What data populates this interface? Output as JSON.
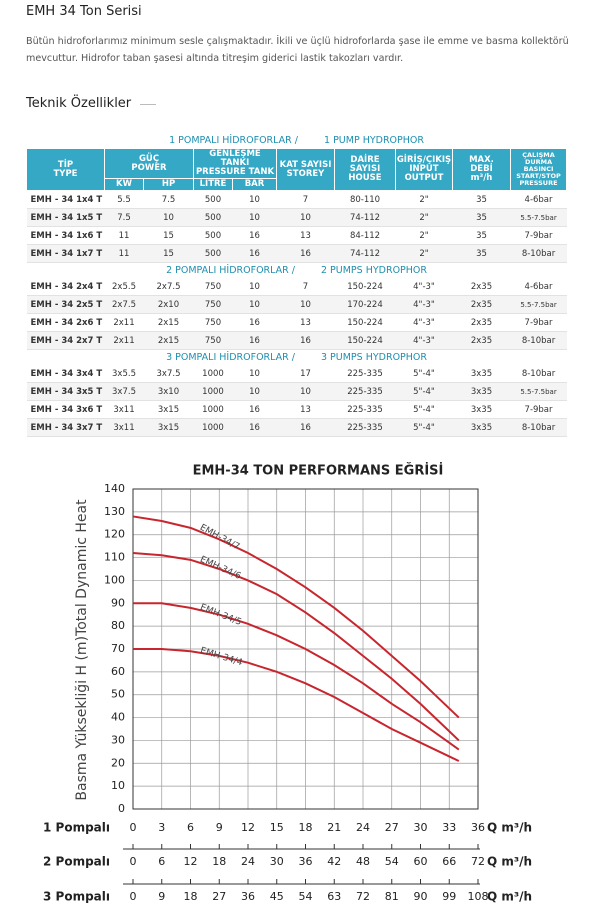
{
  "header": {
    "title": "EMH 34 Ton Serisi"
  },
  "description": "Bütün hidroforlarımız minimum sesle çalışmaktadır. İkili ve üçlü hidroforlarda şase ile emme ve basma kollektörü mevcuttur. Hidrofor taban şasesi altında titreşim giderici lastik takozları vardır.",
  "section_title": "Teknik Özellikler",
  "table": {
    "header": [
      [
        "TİP",
        "TYPE"
      ],
      [
        "GÜÇ",
        "POWER"
      ],
      [
        "GENLEŞME TANKI",
        "PRESSURE TANK"
      ],
      [
        "KAT SAYISI",
        "STOREY"
      ],
      [
        "DAİRE",
        "SAYISI",
        "HOUSE"
      ],
      [
        "GİRİŞ/ÇIKIŞ",
        "INPUT",
        "OUTPUT"
      ],
      [
        "MAX.",
        "DEBİ",
        "m³/h"
      ],
      [
        "ÇALIŞMA",
        "DURMA BASINCI",
        "START/STOP",
        "PRESSURE"
      ]
    ],
    "subheader": [
      "KW",
      "HP",
      "LİTRE",
      "BAR"
    ],
    "groups": [
      {
        "title_tr": "1 POMPALI HİDROFORLAR /",
        "title_en": "1 PUMP HYDROPHOR",
        "rows": [
          [
            "EMH - 34 1x4 T",
            "5.5",
            "7.5",
            "500",
            "10",
            "7",
            "80-110",
            "2\"",
            "35",
            "4-6bar"
          ],
          [
            "EMH - 34 1x5 T",
            "7.5",
            "10",
            "500",
            "10",
            "10",
            "74-112",
            "2\"",
            "35",
            "5.5-7.5bar"
          ],
          [
            "EMH - 34 1x6 T",
            "11",
            "15",
            "500",
            "16",
            "13",
            "84-112",
            "2\"",
            "35",
            "7-9bar"
          ],
          [
            "EMH - 34 1x7 T",
            "11",
            "15",
            "500",
            "16",
            "16",
            "74-112",
            "2\"",
            "35",
            "8-10bar"
          ]
        ]
      },
      {
        "title_tr": "2 POMPALI HİDROFORLAR /",
        "title_en": "2 PUMPS HYDROPHOR",
        "rows": [
          [
            "EMH - 34 2x4 T",
            "2x5.5",
            "2x7.5",
            "750",
            "10",
            "7",
            "150-224",
            "4\"-3\"",
            "2x35",
            "4-6bar"
          ],
          [
            "EMH - 34 2x5 T",
            "2x7.5",
            "2x10",
            "750",
            "10",
            "10",
            "170-224",
            "4\"-3\"",
            "2x35",
            "5.5-7.5bar"
          ],
          [
            "EMH - 34 2x6 T",
            "2x11",
            "2x15",
            "750",
            "16",
            "13",
            "150-224",
            "4\"-3\"",
            "2x35",
            "7-9bar"
          ],
          [
            "EMH - 34 2x7 T",
            "2x11",
            "2x15",
            "750",
            "16",
            "16",
            "150-224",
            "4\"-3\"",
            "2x35",
            "8-10bar"
          ]
        ]
      },
      {
        "title_tr": "3 POMPALI HİDROFORLAR /",
        "title_en": "3 PUMPS HYDROPHOR",
        "rows": [
          [
            "EMH - 34 3x4 T",
            "3x5.5",
            "3x7.5",
            "1000",
            "10",
            "17",
            "225-335",
            "5\"-4\"",
            "3x35",
            "8-10bar"
          ],
          [
            "EMH - 34 3x5 T",
            "3x7.5",
            "3x10",
            "1000",
            "10",
            "10",
            "225-335",
            "5\"-4\"",
            "3x35",
            "5.5-7.5bar"
          ],
          [
            "EMH - 34 3x6 T",
            "3x11",
            "3x15",
            "1000",
            "16",
            "13",
            "225-335",
            "5\"-4\"",
            "3x35",
            "7-9bar"
          ],
          [
            "EMH - 34 3x7 T",
            "3x11",
            "3x15",
            "1000",
            "16",
            "16",
            "225-335",
            "5\"-4\"",
            "3x35",
            "8-10bar"
          ]
        ]
      }
    ]
  },
  "chart_data": {
    "type": "line",
    "title": "EMH-34 TON PERFORMANS EĞRİSİ",
    "ylabel": "Basma Yüksekliği H (m)Total Dynamic Heat",
    "ylim": [
      0,
      140
    ],
    "yticks": [
      0,
      10,
      20,
      30,
      40,
      50,
      60,
      70,
      80,
      90,
      100,
      110,
      120,
      130,
      140
    ],
    "xlabel": "1 Pompalı",
    "xunit": "Q m³/h",
    "xlim": [
      0,
      36
    ],
    "xticks": [
      0,
      3,
      6,
      9,
      12,
      15,
      18,
      21,
      24,
      27,
      30,
      33,
      36
    ],
    "extra_x_axes": [
      {
        "label": "2 Pompalı",
        "unit": "Q m³/h",
        "lim": [
          0,
          72
        ],
        "ticks": [
          0,
          6,
          12,
          18,
          24,
          30,
          36,
          42,
          48,
          54,
          60,
          66,
          72
        ]
      },
      {
        "label": "3 Pompalı",
        "unit": "Q m³/h",
        "lim": [
          0,
          108
        ],
        "ticks": [
          0,
          9,
          18,
          27,
          36,
          45,
          54,
          63,
          72,
          81,
          90,
          99,
          108
        ]
      }
    ],
    "grid": true,
    "x": [
      0,
      3,
      6,
      9,
      12,
      15,
      18,
      21,
      24,
      27,
      30,
      33,
      34
    ],
    "series": [
      {
        "name": "EMH-34/7",
        "color": "#c8262e",
        "values": [
          128,
          126,
          123,
          118,
          112,
          105,
          97,
          88,
          78,
          67,
          56,
          44,
          40
        ]
      },
      {
        "name": "EMH-34/6",
        "color": "#c8262e",
        "values": [
          112,
          111,
          109,
          105,
          100,
          94,
          86,
          77,
          67,
          57,
          46,
          34,
          30
        ]
      },
      {
        "name": "EMH-34/5",
        "color": "#c8262e",
        "values": [
          90,
          90,
          88,
          85,
          81,
          76,
          70,
          63,
          55,
          46,
          38,
          29,
          26
        ]
      },
      {
        "name": "EMH-34/4",
        "color": "#c8262e",
        "values": [
          70,
          70,
          69,
          67,
          64,
          60,
          55,
          49,
          42,
          35,
          29,
          23,
          21
        ]
      }
    ]
  }
}
